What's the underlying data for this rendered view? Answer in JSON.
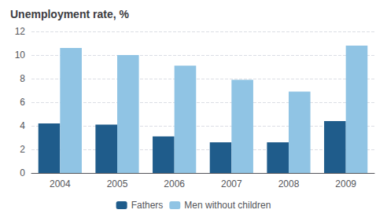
{
  "chart_data": {
    "type": "bar",
    "title": "Unemployment rate, %",
    "categories": [
      "2004",
      "2005",
      "2006",
      "2007",
      "2008",
      "2009"
    ],
    "series": [
      {
        "name": "Fathers",
        "color": "#1F5C8B",
        "values": [
          4.2,
          4.1,
          3.1,
          2.6,
          2.6,
          4.4
        ]
      },
      {
        "name": "Men without children",
        "color": "#90C4E4",
        "values": [
          10.6,
          10.0,
          9.1,
          7.9,
          6.9,
          10.8
        ]
      }
    ],
    "ylim": [
      0,
      12
    ],
    "yticks": [
      0,
      2,
      4,
      6,
      8,
      10,
      12
    ],
    "grid": true,
    "legend": "bottom"
  }
}
